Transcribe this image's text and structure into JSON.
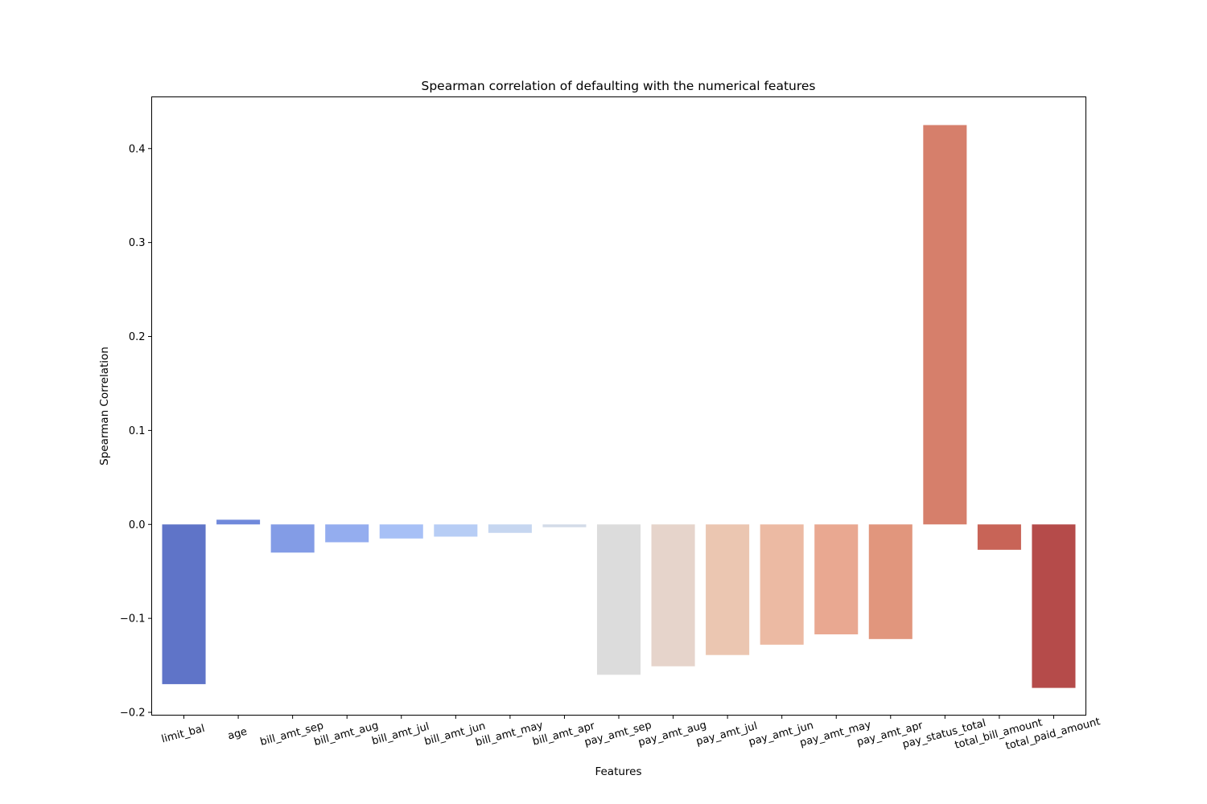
{
  "chart_data": {
    "type": "bar",
    "title": "Spearman correlation of defaulting with the numerical features",
    "xlabel": "Features",
    "ylabel": "Spearman Correlation",
    "ylim": [
      -0.203,
      0.455
    ],
    "yticks": [
      -0.2,
      -0.1,
      0.0,
      0.1,
      0.2,
      0.3,
      0.4
    ],
    "ytick_labels": [
      "−0.2",
      "−0.1",
      "0.0",
      "0.1",
      "0.2",
      "0.3",
      "0.4"
    ],
    "grid": false,
    "categories": [
      "limit_bal",
      "age",
      "bill_amt_sep",
      "bill_amt_aug",
      "bill_amt_jul",
      "bill_amt_jun",
      "bill_amt_may",
      "bill_amt_apr",
      "pay_amt_sep",
      "pay_amt_aug",
      "pay_amt_jul",
      "pay_amt_jun",
      "pay_amt_may",
      "pay_amt_apr",
      "pay_status_total",
      "total_bill_amount",
      "total_paid_amount"
    ],
    "values": [
      -0.17,
      0.005,
      -0.03,
      -0.019,
      -0.015,
      -0.013,
      -0.009,
      -0.003,
      -0.16,
      -0.151,
      -0.139,
      -0.128,
      -0.117,
      -0.122,
      0.425,
      -0.027,
      -0.174
    ],
    "colors": [
      "#5f74c8",
      "#7089db",
      "#839ce6",
      "#94adef",
      "#a7c0f6",
      "#b7cdf5",
      "#c6d6f0",
      "#d3dbe8",
      "#dcdcdc",
      "#e6d4cb",
      "#ebc6b1",
      "#ecbaa3",
      "#e9a891",
      "#e1967d",
      "#d67f6b",
      "#c86457",
      "#b54b4a"
    ]
  }
}
